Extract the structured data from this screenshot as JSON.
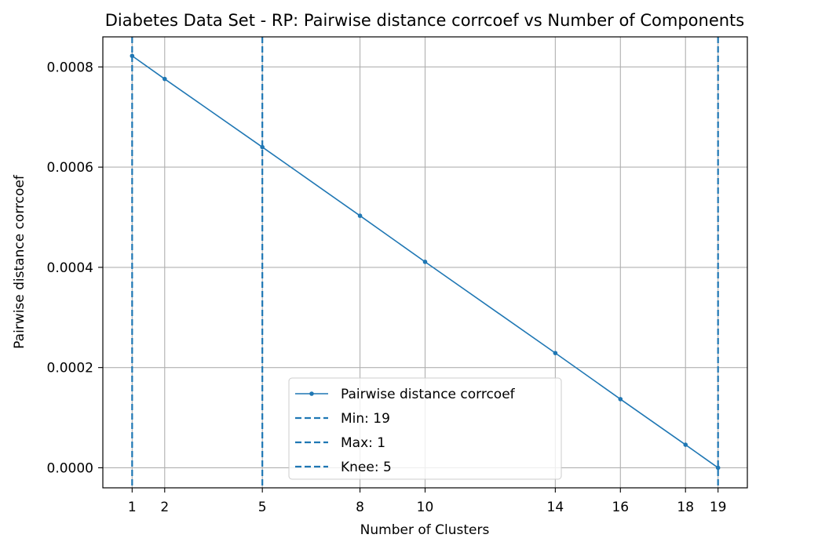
{
  "chart_data": {
    "type": "line",
    "title": "Diabetes Data Set - RP: Pairwise distance corrcoef vs Number of Components",
    "xlabel": "Number of Clusters",
    "ylabel": "Pairwise distance corrcoef",
    "x": [
      1,
      2,
      5,
      8,
      10,
      14,
      16,
      18,
      19
    ],
    "xticks": [
      1,
      2,
      5,
      8,
      10,
      14,
      16,
      18,
      19
    ],
    "xlim": [
      0.1,
      19.9
    ],
    "yticks": [
      "0.0000",
      "0.0002",
      "0.0004",
      "0.0006",
      "0.0008"
    ],
    "ytick_values": [
      0,
      0.0002,
      0.0004,
      0.0006,
      0.0008
    ],
    "ylim": [
      -4e-05,
      0.00086
    ],
    "grid": true,
    "legend_position": "lower center",
    "series": [
      {
        "name": "Pairwise distance corrcoef",
        "values": [
          0.000822,
          0.000776,
          0.00064,
          0.000503,
          0.000411,
          0.000229,
          0.000137,
          4.6e-05,
          0.0
        ],
        "color": "#1f77b4"
      }
    ],
    "vlines": [
      {
        "label": "Min: 19",
        "x": 19,
        "color": "#1f77b4",
        "style": "dashed"
      },
      {
        "label": "Max: 1",
        "x": 1,
        "color": "#1f77b4",
        "style": "dashed"
      },
      {
        "label": "Knee: 5",
        "x": 5,
        "color": "#1f77b4",
        "style": "dashed"
      }
    ]
  }
}
